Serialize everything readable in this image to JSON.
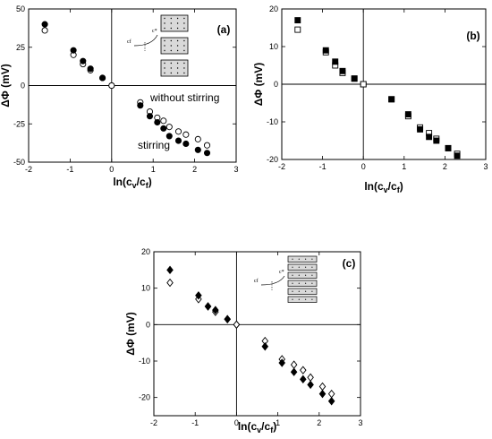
{
  "chart_data": [
    {
      "type": "scatter",
      "panel_label": "(a)",
      "xlabel": "ln(cv/cf)",
      "ylabel": "ΔΦ (mV)",
      "xlim": [
        -2,
        3
      ],
      "ylim": [
        -50,
        50
      ],
      "xticks": [
        -2,
        -1,
        0,
        1,
        2,
        3
      ],
      "yticks": [
        -50,
        -25,
        0,
        25,
        50
      ],
      "marker": "circle",
      "annotations": [
        "without stirring",
        "stirring"
      ],
      "inset_labels": [
        "cf",
        "c*"
      ],
      "series": [
        {
          "name": "stirring",
          "filled": true,
          "x": [
            -1.61,
            -0.92,
            -0.69,
            -0.51,
            -0.22,
            0,
            0.69,
            0.92,
            1.1,
            1.25,
            1.39,
            1.61,
            1.79,
            2.08,
            2.3
          ],
          "y": [
            40,
            23,
            16,
            11,
            5,
            0,
            -13,
            -20,
            -24,
            -28,
            -33,
            -36,
            -38,
            -42,
            -44
          ]
        },
        {
          "name": "without stirring",
          "filled": false,
          "x": [
            -1.61,
            -0.92,
            -0.69,
            -0.51,
            -0.22,
            0,
            0.69,
            0.92,
            1.1,
            1.25,
            1.39,
            1.61,
            1.79,
            2.08,
            2.3
          ],
          "y": [
            36,
            20,
            14,
            10,
            5,
            0,
            -11,
            -17,
            -21,
            -23,
            -27,
            -30,
            -32,
            -35,
            -39
          ]
        }
      ]
    },
    {
      "type": "scatter",
      "panel_label": "(b)",
      "xlabel": "ln(cv/cf)",
      "ylabel": "ΔΦ (mV)",
      "xlim": [
        -2,
        3
      ],
      "ylim": [
        -20,
        20
      ],
      "xticks": [
        -2,
        -1,
        0,
        1,
        2,
        3
      ],
      "yticks": [
        -20,
        -10,
        0,
        10,
        20
      ],
      "marker": "square",
      "series": [
        {
          "name": "",
          "filled": true,
          "x": [
            -1.61,
            -0.92,
            -0.69,
            -0.51,
            -0.22,
            0,
            0.69,
            1.1,
            1.39,
            1.61,
            1.79,
            2.08,
            2.3
          ],
          "y": [
            17,
            9,
            6,
            3.5,
            1.5,
            0,
            -4,
            -8,
            -12,
            -14,
            -15,
            -17,
            -19
          ]
        },
        {
          "name": "",
          "filled": false,
          "x": [
            -1.61,
            -0.92,
            -0.69,
            -0.51,
            -0.22,
            0,
            0.69,
            1.1,
            1.39,
            1.61,
            1.79,
            2.08,
            2.3
          ],
          "y": [
            14.5,
            8.5,
            5,
            3,
            1.5,
            0,
            -4,
            -8.5,
            -11.5,
            -13,
            -14.5,
            -17,
            -18.5
          ]
        }
      ]
    },
    {
      "type": "scatter",
      "panel_label": "(c)",
      "xlabel": "ln(cv/cf)",
      "ylabel": "ΔΦ (mV)",
      "xlim": [
        -2,
        3
      ],
      "ylim": [
        -25,
        20
      ],
      "xticks": [
        -2,
        -1,
        0,
        1,
        2,
        3
      ],
      "yticks": [
        -20,
        -10,
        0,
        10,
        20
      ],
      "marker": "diamond",
      "inset_labels": [
        "cf",
        "c*"
      ],
      "series": [
        {
          "name": "",
          "filled": true,
          "x": [
            -1.61,
            -0.92,
            -0.69,
            -0.51,
            -0.22,
            0,
            0.69,
            1.1,
            1.39,
            1.61,
            1.79,
            2.08,
            2.3
          ],
          "y": [
            15,
            8,
            5,
            4,
            1.5,
            0,
            -6,
            -10.5,
            -13,
            -15,
            -16.5,
            -19,
            -21
          ]
        },
        {
          "name": "",
          "filled": false,
          "x": [
            -1.61,
            -0.92,
            -0.69,
            -0.51,
            -0.22,
            0,
            0.69,
            1.1,
            1.39,
            1.61,
            1.79,
            2.08,
            2.3
          ],
          "y": [
            11.5,
            7,
            5,
            3.5,
            1.5,
            0,
            -4.5,
            -9.5,
            -11,
            -12.5,
            -14.5,
            -17,
            -19
          ]
        }
      ]
    }
  ]
}
